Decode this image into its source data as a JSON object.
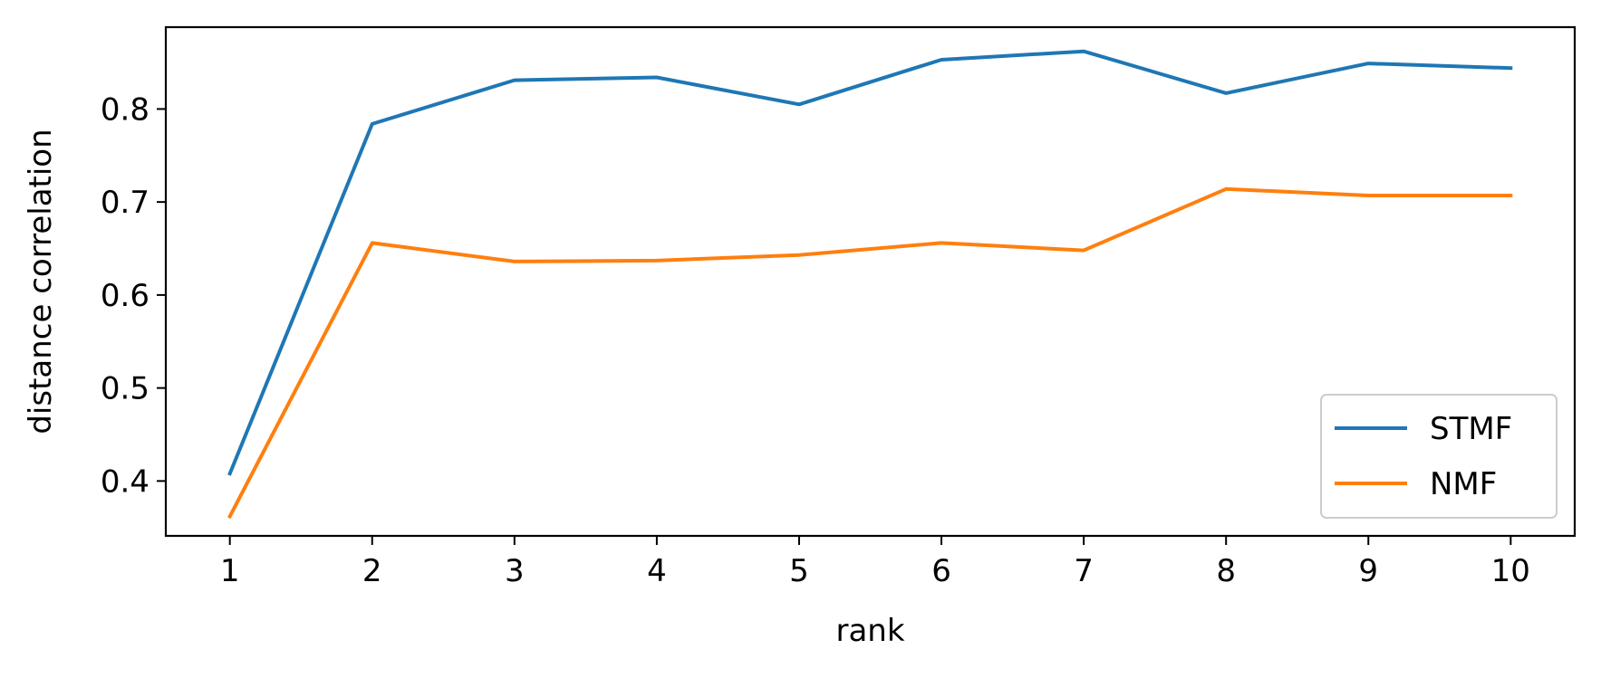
{
  "chart_data": {
    "type": "line",
    "xlabel": "rank",
    "ylabel": "distance correlation",
    "x": [
      1,
      2,
      3,
      4,
      5,
      6,
      7,
      8,
      9,
      10
    ],
    "xticks": [
      "1",
      "2",
      "3",
      "4",
      "5",
      "6",
      "7",
      "8",
      "9",
      "10"
    ],
    "yticks": [
      "0.4",
      "0.5",
      "0.6",
      "0.7",
      "0.8"
    ],
    "ytick_values": [
      0.4,
      0.5,
      0.6,
      0.7,
      0.8
    ],
    "xlim": [
      0.55,
      10.45
    ],
    "ylim": [
      0.341,
      0.888
    ],
    "grid": false,
    "legend_position": "lower right",
    "series": [
      {
        "name": "STMF",
        "color": "#1f77b4",
        "values": [
          0.408,
          0.784,
          0.831,
          0.834,
          0.805,
          0.853,
          0.862,
          0.817,
          0.849,
          0.844
        ]
      },
      {
        "name": "NMF",
        "color": "#ff7f0e",
        "values": [
          0.362,
          0.656,
          0.636,
          0.637,
          0.643,
          0.656,
          0.648,
          0.714,
          0.707,
          0.707
        ]
      }
    ]
  }
}
